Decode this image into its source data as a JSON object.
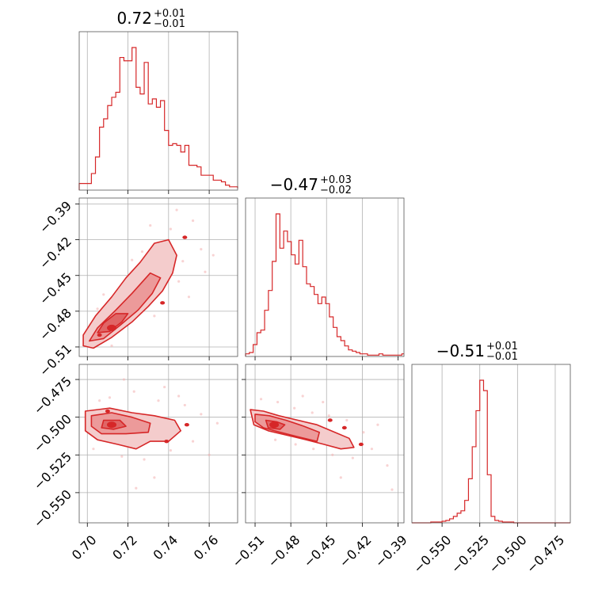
{
  "chart_data": {
    "type": "corner",
    "color": "#d62728",
    "fill_colors": [
      "#f4cccc",
      "#ec9a9a",
      "#e06666"
    ],
    "grid": true,
    "parameters": [
      {
        "title": {
          "main": "0.72",
          "sup": "+0.01",
          "sub": "−0.01"
        },
        "range": [
          0.696,
          0.774
        ],
        "ticks": [
          {
            "v": 0.7,
            "label": "0.70"
          },
          {
            "v": 0.72,
            "label": "0.72"
          },
          {
            "v": 0.74,
            "label": "0.74"
          },
          {
            "v": 0.76,
            "label": "0.76"
          }
        ],
        "hist": {
          "start": 0.696,
          "width": 0.002,
          "counts": [
            4,
            4,
            4,
            10,
            20,
            38,
            43,
            51,
            56,
            59,
            80,
            78,
            78,
            86,
            62,
            58,
            77,
            52,
            55,
            50,
            54,
            36,
            27,
            28,
            27,
            23,
            27,
            15,
            15,
            14,
            9,
            9,
            9,
            6,
            6,
            5,
            3,
            2,
            2,
            1,
            1,
            1
          ]
        },
        "center": 0.717
      },
      {
        "title": {
          "main": "−0.47",
          "sup": "+0.03",
          "sub": "−0.02"
        },
        "range": [
          -0.518,
          -0.385
        ],
        "ticks": [
          {
            "v": -0.51,
            "label": "−0.51"
          },
          {
            "v": -0.48,
            "label": "−0.48"
          },
          {
            "v": -0.45,
            "label": "−0.45"
          },
          {
            "v": -0.42,
            "label": "−0.42"
          },
          {
            "v": -0.39,
            "label": "−0.39"
          }
        ],
        "hist": {
          "start": -0.518,
          "width": 0.0032,
          "counts": [
            2,
            3,
            9,
            18,
            20,
            35,
            50,
            72,
            108,
            82,
            95,
            87,
            77,
            70,
            88,
            68,
            55,
            53,
            47,
            40,
            45,
            40,
            30,
            22,
            15,
            12,
            8,
            5,
            4,
            3,
            2,
            2,
            1,
            1,
            1,
            2,
            1,
            1,
            1,
            1,
            1,
            2
          ]
        },
        "center": -0.494
      },
      {
        "title": {
          "main": "−0.51",
          "sup": "+0.01",
          "sub": "−0.01"
        },
        "range": [
          -0.57,
          -0.465
        ],
        "ticks": [
          {
            "v": -0.55,
            "label": "−0.550"
          },
          {
            "v": -0.525,
            "label": "−0.525"
          },
          {
            "v": -0.5,
            "label": "−0.500"
          },
          {
            "v": -0.475,
            "label": "−0.475"
          }
        ],
        "hist": {
          "start": -0.57,
          "width": 0.0025,
          "counts": [
            0,
            0,
            0,
            0,
            0,
            1,
            1,
            1,
            2,
            3,
            5,
            8,
            12,
            15,
            28,
            55,
            95,
            140,
            178,
            165,
            60,
            8,
            3,
            2,
            1,
            1,
            1,
            0,
            0,
            0,
            0,
            0,
            0,
            0,
            0,
            0,
            0,
            0,
            0,
            0,
            0,
            0
          ]
        },
        "center": -0.506
      }
    ],
    "pairs": [
      {
        "x": 0,
        "y": 1,
        "levels": [
          {
            "fill": "#f4cccc",
            "poly": [
              [
                0.698,
                -0.509
              ],
              [
                0.703,
                -0.511
              ],
              [
                0.712,
                -0.502
              ],
              [
                0.722,
                -0.489
              ],
              [
                0.73,
                -0.476
              ],
              [
                0.737,
                -0.463
              ],
              [
                0.742,
                -0.448
              ],
              [
                0.744,
                -0.433
              ],
              [
                0.74,
                -0.42
              ],
              [
                0.733,
                -0.423
              ],
              [
                0.726,
                -0.439
              ],
              [
                0.719,
                -0.452
              ],
              [
                0.712,
                -0.468
              ],
              [
                0.704,
                -0.484
              ],
              [
                0.698,
                -0.5
              ]
            ]
          },
          {
            "fill": "#ec9a9a",
            "poly": [
              [
                0.701,
                -0.505
              ],
              [
                0.708,
                -0.503
              ],
              [
                0.716,
                -0.492
              ],
              [
                0.725,
                -0.479
              ],
              [
                0.732,
                -0.465
              ],
              [
                0.736,
                -0.452
              ],
              [
                0.731,
                -0.448
              ],
              [
                0.722,
                -0.465
              ],
              [
                0.714,
                -0.479
              ],
              [
                0.705,
                -0.494
              ]
            ]
          },
          {
            "fill": "#e06666",
            "poly": [
              [
                0.705,
                -0.498
              ],
              [
                0.711,
                -0.497
              ],
              [
                0.717,
                -0.489
              ],
              [
                0.72,
                -0.482
              ],
              [
                0.714,
                -0.482
              ],
              [
                0.708,
                -0.49
              ]
            ]
          }
        ],
        "blobs": [
          [
            0.737,
            -0.473
          ],
          [
            0.748,
            -0.418
          ],
          [
            0.706,
            -0.5
          ]
        ],
        "peak": [
          0.712,
          -0.494
        ]
      },
      {
        "x": 0,
        "y": 2,
        "levels": [
          {
            "fill": "#f4cccc",
            "poly": [
              [
                0.699,
                -0.496
              ],
              [
                0.711,
                -0.494
              ],
              [
                0.722,
                -0.497
              ],
              [
                0.733,
                -0.499
              ],
              [
                0.743,
                -0.502
              ],
              [
                0.746,
                -0.509
              ],
              [
                0.74,
                -0.516
              ],
              [
                0.731,
                -0.516
              ],
              [
                0.724,
                -0.521
              ],
              [
                0.715,
                -0.518
              ],
              [
                0.705,
                -0.515
              ],
              [
                0.699,
                -0.509
              ]
            ]
          },
          {
            "fill": "#ec9a9a",
            "poly": [
              [
                0.702,
                -0.499
              ],
              [
                0.712,
                -0.497
              ],
              [
                0.722,
                -0.5
              ],
              [
                0.731,
                -0.504
              ],
              [
                0.73,
                -0.51
              ],
              [
                0.719,
                -0.511
              ],
              [
                0.707,
                -0.511
              ],
              [
                0.702,
                -0.506
              ]
            ]
          },
          {
            "fill": "#e06666",
            "poly": [
              [
                0.708,
                -0.502
              ],
              [
                0.716,
                -0.502
              ],
              [
                0.719,
                -0.506
              ],
              [
                0.713,
                -0.508
              ],
              [
                0.707,
                -0.507
              ]
            ]
          }
        ],
        "blobs": [
          [
            0.749,
            -0.505
          ],
          [
            0.739,
            -0.516
          ],
          [
            0.71,
            -0.496
          ]
        ],
        "peak": [
          0.712,
          -0.505
        ]
      },
      {
        "x": 1,
        "y": 2,
        "levels": [
          {
            "fill": "#f4cccc",
            "poly": [
              [
                -0.514,
                -0.495
              ],
              [
                -0.503,
                -0.496
              ],
              [
                -0.49,
                -0.499
              ],
              [
                -0.474,
                -0.502
              ],
              [
                -0.458,
                -0.505
              ],
              [
                -0.443,
                -0.51
              ],
              [
                -0.431,
                -0.514
              ],
              [
                -0.427,
                -0.52
              ],
              [
                -0.438,
                -0.521
              ],
              [
                -0.452,
                -0.518
              ],
              [
                -0.467,
                -0.515
              ],
              [
                -0.483,
                -0.512
              ],
              [
                -0.499,
                -0.509
              ],
              [
                -0.511,
                -0.505
              ]
            ]
          },
          {
            "fill": "#ec9a9a",
            "poly": [
              [
                -0.51,
                -0.498
              ],
              [
                -0.498,
                -0.499
              ],
              [
                -0.484,
                -0.502
              ],
              [
                -0.469,
                -0.506
              ],
              [
                -0.456,
                -0.51
              ],
              [
                -0.458,
                -0.516
              ],
              [
                -0.474,
                -0.513
              ],
              [
                -0.489,
                -0.51
              ],
              [
                -0.503,
                -0.507
              ],
              [
                -0.51,
                -0.503
              ]
            ]
          },
          {
            "fill": "#e06666",
            "poly": [
              [
                -0.501,
                -0.502
              ],
              [
                -0.492,
                -0.503
              ],
              [
                -0.485,
                -0.505
              ],
              [
                -0.489,
                -0.508
              ],
              [
                -0.499,
                -0.507
              ]
            ]
          }
        ],
        "blobs": [
          [
            -0.421,
            -0.518
          ],
          [
            -0.447,
            -0.502
          ],
          [
            -0.435,
            -0.507
          ]
        ],
        "peak": [
          -0.494,
          -0.505
        ]
      }
    ],
    "scatter": [
      {
        "x": 0,
        "y": 1,
        "points": [
          [
            0.741,
            -0.411
          ],
          [
            0.752,
            -0.404
          ],
          [
            0.747,
            -0.438
          ],
          [
            0.756,
            -0.428
          ],
          [
            0.734,
            -0.442
          ],
          [
            0.729,
            -0.458
          ],
          [
            0.722,
            -0.437
          ],
          [
            0.715,
            -0.462
          ],
          [
            0.745,
            -0.455
          ],
          [
            0.758,
            -0.447
          ],
          [
            0.738,
            -0.43
          ],
          [
            0.705,
            -0.478
          ],
          [
            0.708,
            -0.466
          ],
          [
            0.726,
            -0.471
          ],
          [
            0.733,
            -0.484
          ],
          [
            0.75,
            -0.468
          ],
          [
            0.762,
            -0.433
          ],
          [
            0.718,
            -0.487
          ],
          [
            0.744,
            -0.395
          ],
          [
            0.731,
            -0.408
          ],
          [
            0.7,
            -0.497
          ],
          [
            0.712,
            -0.509
          ],
          [
            0.736,
            -0.452
          ],
          [
            0.727,
            -0.43
          ]
        ]
      },
      {
        "x": 0,
        "y": 2,
        "points": [
          [
            0.711,
            -0.487
          ],
          [
            0.723,
            -0.483
          ],
          [
            0.735,
            -0.489
          ],
          [
            0.748,
            -0.492
          ],
          [
            0.756,
            -0.498
          ],
          [
            0.764,
            -0.504
          ],
          [
            0.741,
            -0.522
          ],
          [
            0.728,
            -0.528
          ],
          [
            0.717,
            -0.526
          ],
          [
            0.703,
            -0.521
          ],
          [
            0.752,
            -0.516
          ],
          [
            0.733,
            -0.54
          ],
          [
            0.745,
            -0.486
          ],
          [
            0.718,
            -0.475
          ],
          [
            0.706,
            -0.489
          ],
          [
            0.724,
            -0.547
          ],
          [
            0.76,
            -0.525
          ],
          [
            0.738,
            -0.48
          ]
        ]
      },
      {
        "x": 1,
        "y": 2,
        "points": [
          [
            -0.505,
            -0.488
          ],
          [
            -0.491,
            -0.49
          ],
          [
            -0.477,
            -0.494
          ],
          [
            -0.462,
            -0.497
          ],
          [
            -0.448,
            -0.499
          ],
          [
            -0.433,
            -0.502
          ],
          [
            -0.419,
            -0.51
          ],
          [
            -0.412,
            -0.521
          ],
          [
            -0.428,
            -0.527
          ],
          [
            -0.445,
            -0.525
          ],
          [
            -0.461,
            -0.521
          ],
          [
            -0.476,
            -0.518
          ],
          [
            -0.493,
            -0.515
          ],
          [
            -0.438,
            -0.54
          ],
          [
            -0.399,
            -0.532
          ],
          [
            -0.407,
            -0.505
          ],
          [
            -0.453,
            -0.49
          ],
          [
            -0.47,
            -0.486
          ],
          [
            -0.395,
            -0.548
          ]
        ]
      }
    ]
  }
}
